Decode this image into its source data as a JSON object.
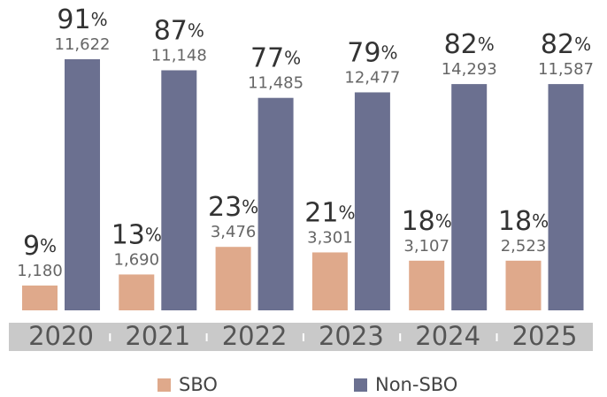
{
  "chart_data": {
    "type": "bar",
    "categories": [
      "2020",
      "2021",
      "2022",
      "2023",
      "2024",
      "2025"
    ],
    "unit": "%",
    "series": [
      {
        "name": "SBO",
        "color": "#dfa98b",
        "values": [
          9,
          13,
          23,
          21,
          18,
          18
        ],
        "counts": [
          1180,
          1690,
          3476,
          3301,
          3107,
          2523
        ],
        "count_labels": [
          "1,180",
          "1,690",
          "3,476",
          "3,301",
          "3,107",
          "2,523"
        ]
      },
      {
        "name": "Non-SBO",
        "color": "#6b7090",
        "values": [
          91,
          87,
          77,
          79,
          82,
          82
        ],
        "counts": [
          11622,
          11148,
          11485,
          12477,
          14293,
          11587
        ],
        "count_labels": [
          "11,622",
          "11,148",
          "11,485",
          "12,477",
          "14,293",
          "11,587"
        ]
      }
    ],
    "ylim": [
      0,
      100
    ]
  }
}
